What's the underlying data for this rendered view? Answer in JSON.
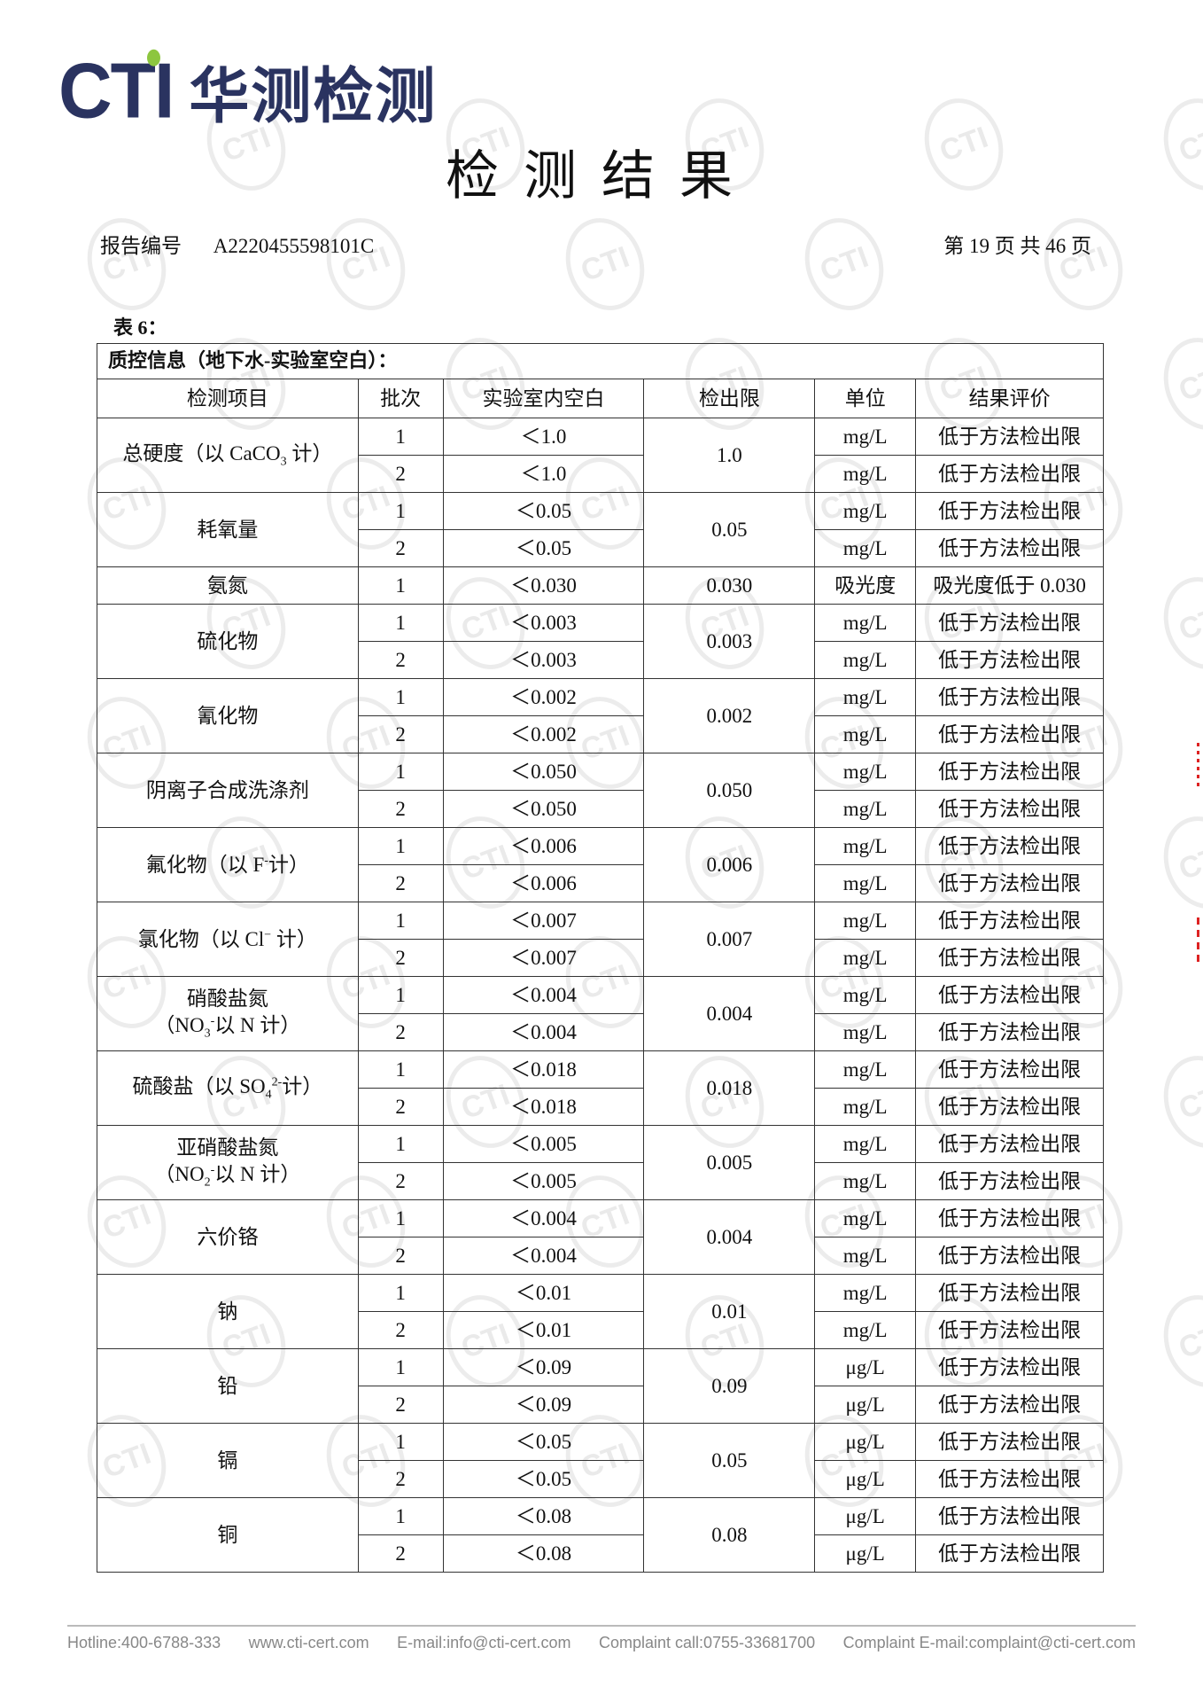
{
  "logo": {
    "latin": "CTI",
    "chinese": "华测检测",
    "accent_color": "#8dc63f",
    "brand_color": "#2a3360"
  },
  "title": "检测结果",
  "report": {
    "label": "报告编号",
    "number": "A2220455598101C",
    "page_info": "第 19 页 共 46 页"
  },
  "table_label": "表 6：",
  "table": {
    "caption": "质控信息（地下水-实验室空白）：",
    "headers": [
      "检测项目",
      "批次",
      "实验室内空白",
      "检出限",
      "单位",
      "结果评价"
    ],
    "groups": [
      {
        "item": [
          [
            {
              "t": "总硬度（以 CaCO"
            },
            {
              "t": "3",
              "sub": true
            },
            {
              "t": " 计）"
            }
          ]
        ],
        "limit": "1.0",
        "rows": [
          [
            "1",
            "＜1.0",
            "mg/L",
            "低于方法检出限"
          ],
          [
            "2",
            "＜1.0",
            "mg/L",
            "低于方法检出限"
          ]
        ]
      },
      {
        "item": [
          [
            {
              "t": "耗氧量"
            }
          ]
        ],
        "limit": "0.05",
        "rows": [
          [
            "1",
            "＜0.05",
            "mg/L",
            "低于方法检出限"
          ],
          [
            "2",
            "＜0.05",
            "mg/L",
            "低于方法检出限"
          ]
        ]
      },
      {
        "item": [
          [
            {
              "t": "氨氮"
            }
          ]
        ],
        "limit": "0.030",
        "rows": [
          [
            "1",
            "＜0.030",
            "吸光度",
            "吸光度低于 0.030"
          ]
        ]
      },
      {
        "item": [
          [
            {
              "t": "硫化物"
            }
          ]
        ],
        "limit": "0.003",
        "rows": [
          [
            "1",
            "＜0.003",
            "mg/L",
            "低于方法检出限"
          ],
          [
            "2",
            "＜0.003",
            "mg/L",
            "低于方法检出限"
          ]
        ]
      },
      {
        "item": [
          [
            {
              "t": "氰化物"
            }
          ]
        ],
        "limit": "0.002",
        "rows": [
          [
            "1",
            "＜0.002",
            "mg/L",
            "低于方法检出限"
          ],
          [
            "2",
            "＜0.002",
            "mg/L",
            "低于方法检出限"
          ]
        ]
      },
      {
        "item": [
          [
            {
              "t": "阴离子合成洗涤剂"
            }
          ]
        ],
        "limit": "0.050",
        "rows": [
          [
            "1",
            "＜0.050",
            "mg/L",
            "低于方法检出限"
          ],
          [
            "2",
            "＜0.050",
            "mg/L",
            "低于方法检出限"
          ]
        ]
      },
      {
        "item": [
          [
            {
              "t": "氟化物（以 F"
            },
            {
              "t": "-",
              "sup": true
            },
            {
              "t": "计）"
            }
          ]
        ],
        "limit": "0.006",
        "rows": [
          [
            "1",
            "＜0.006",
            "mg/L",
            "低于方法检出限"
          ],
          [
            "2",
            "＜0.006",
            "mg/L",
            "低于方法检出限"
          ]
        ]
      },
      {
        "item": [
          [
            {
              "t": "氯化物（以 Cl"
            },
            {
              "t": "−",
              "sup": true
            },
            {
              "t": " 计）"
            }
          ]
        ],
        "limit": "0.007",
        "rows": [
          [
            "1",
            "＜0.007",
            "mg/L",
            "低于方法检出限"
          ],
          [
            "2",
            "＜0.007",
            "mg/L",
            "低于方法检出限"
          ]
        ]
      },
      {
        "item": [
          [
            {
              "t": "硝酸盐氮"
            }
          ],
          [
            {
              "t": "（NO"
            },
            {
              "t": "3",
              "sub": true
            },
            {
              "t": "-",
              "sup": true
            },
            {
              "t": "以 N 计）"
            }
          ]
        ],
        "limit": "0.004",
        "rows": [
          [
            "1",
            "＜0.004",
            "mg/L",
            "低于方法检出限"
          ],
          [
            "2",
            "＜0.004",
            "mg/L",
            "低于方法检出限"
          ]
        ]
      },
      {
        "item": [
          [
            {
              "t": "硫酸盐（以 SO"
            },
            {
              "t": "4",
              "sub": true
            },
            {
              "t": "2-",
              "sup": true
            },
            {
              "t": "计）"
            }
          ]
        ],
        "limit": "0.018",
        "rows": [
          [
            "1",
            "＜0.018",
            "mg/L",
            "低于方法检出限"
          ],
          [
            "2",
            "＜0.018",
            "mg/L",
            "低于方法检出限"
          ]
        ]
      },
      {
        "item": [
          [
            {
              "t": "亚硝酸盐氮"
            }
          ],
          [
            {
              "t": "（NO"
            },
            {
              "t": "2",
              "sub": true
            },
            {
              "t": "-",
              "sup": true
            },
            {
              "t": "以 N 计）"
            }
          ]
        ],
        "limit": "0.005",
        "rows": [
          [
            "1",
            "＜0.005",
            "mg/L",
            "低于方法检出限"
          ],
          [
            "2",
            "＜0.005",
            "mg/L",
            "低于方法检出限"
          ]
        ]
      },
      {
        "item": [
          [
            {
              "t": "六价铬"
            }
          ]
        ],
        "limit": "0.004",
        "rows": [
          [
            "1",
            "＜0.004",
            "mg/L",
            "低于方法检出限"
          ],
          [
            "2",
            "＜0.004",
            "mg/L",
            "低于方法检出限"
          ]
        ]
      },
      {
        "item": [
          [
            {
              "t": "钠"
            }
          ]
        ],
        "limit": "0.01",
        "rows": [
          [
            "1",
            "＜0.01",
            "mg/L",
            "低于方法检出限"
          ],
          [
            "2",
            "＜0.01",
            "mg/L",
            "低于方法检出限"
          ]
        ]
      },
      {
        "item": [
          [
            {
              "t": "铅"
            }
          ]
        ],
        "limit": "0.09",
        "rows": [
          [
            "1",
            "＜0.09",
            "μg/L",
            "低于方法检出限"
          ],
          [
            "2",
            "＜0.09",
            "μg/L",
            "低于方法检出限"
          ]
        ]
      },
      {
        "item": [
          [
            {
              "t": "镉"
            }
          ]
        ],
        "limit": "0.05",
        "rows": [
          [
            "1",
            "＜0.05",
            "μg/L",
            "低于方法检出限"
          ],
          [
            "2",
            "＜0.05",
            "μg/L",
            "低于方法检出限"
          ]
        ]
      },
      {
        "item": [
          [
            {
              "t": "铜"
            }
          ]
        ],
        "limit": "0.08",
        "rows": [
          [
            "1",
            "＜0.08",
            "μg/L",
            "低于方法检出限"
          ],
          [
            "2",
            "＜0.08",
            "μg/L",
            "低于方法检出限"
          ]
        ]
      }
    ]
  },
  "footer": {
    "hotline": "Hotline:400-6788-333",
    "website": "www.cti-cert.com",
    "email": "E-mail:info@cti-cert.com",
    "complaint_call": "Complaint call:0755-33681700",
    "complaint_email": "Complaint E-mail:complaint@cti-cert.com"
  },
  "watermark": {
    "text": "CTI"
  }
}
